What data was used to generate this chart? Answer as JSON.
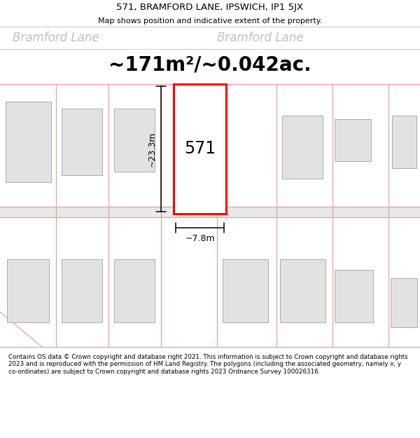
{
  "title_line1": "571, BRAMFORD LANE, IPSWICH, IP1 5JX",
  "title_line2": "Map shows position and indicative extent of the property.",
  "area_text": "~171m²/~0.042ac.",
  "street_name_left": "Bramford Lane",
  "street_name_right": "Bramford Lane",
  "property_number": "571",
  "dim_width": "~7.8m",
  "dim_height": "~23.3m",
  "footer_text": "Contains OS data © Crown copyright and database right 2021. This information is subject to Crown copyright and database rights 2023 and is reproduced with the permission of HM Land Registry. The polygons (including the associated geometry, namely x, y co-ordinates) are subject to Crown copyright and database rights 2023 Ordnance Survey 100026316.",
  "bg_color": "#ffffff",
  "map_bg": "#f5f5f5",
  "road_stripe_color": "#e0e0e0",
  "plot_border_color": "#e8a0a0",
  "building_fill": "#e2e2e2",
  "building_border": "#aaaaaa",
  "highlight_color": "#ff0000",
  "highlight_fill": "#ffffff",
  "dim_color": "#000000",
  "street_text_color": "#c0c0c0",
  "title_color": "#000000",
  "area_color": "#000000",
  "footer_color": "#000000",
  "separator_color": "#cccccc"
}
